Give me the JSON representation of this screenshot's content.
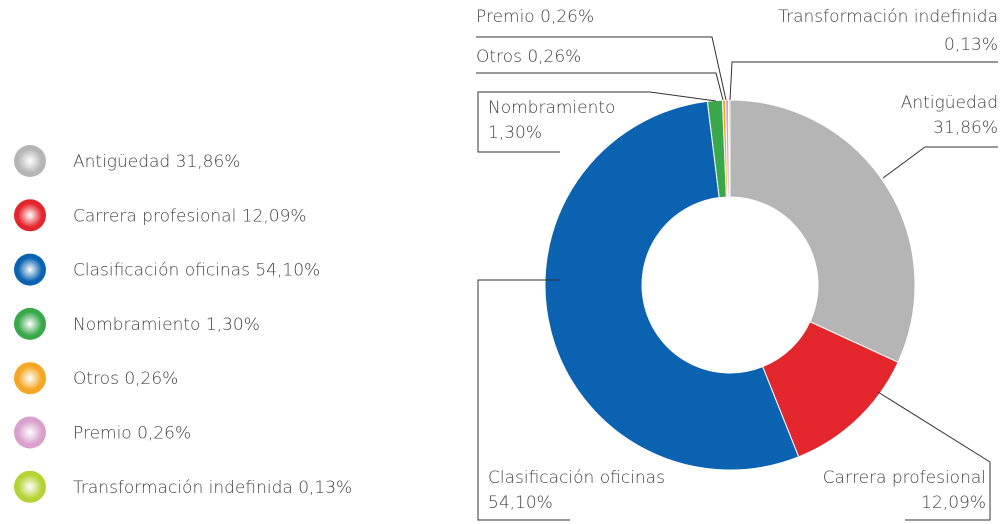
{
  "chart_data": {
    "type": "pie",
    "donut": true,
    "categories": [
      "Antigüedad",
      "Carrera profesional",
      "Clasificación oficinas",
      "Nombramiento",
      "Otros",
      "Premio",
      "Transformación indefinida"
    ],
    "values": [
      31.86,
      12.09,
      54.1,
      1.3,
      0.26,
      0.26,
      0.13
    ],
    "value_labels": [
      "31,86%",
      "12,09%",
      "54,10%",
      "1,30%",
      "0,26%",
      "0,26%",
      "0,13%"
    ],
    "colors": [
      "#b5b5b5",
      "#e3262b",
      "#0a62b0",
      "#3aa84a",
      "#f5a623",
      "#d9a0cc",
      "#b5d334"
    ]
  }
}
